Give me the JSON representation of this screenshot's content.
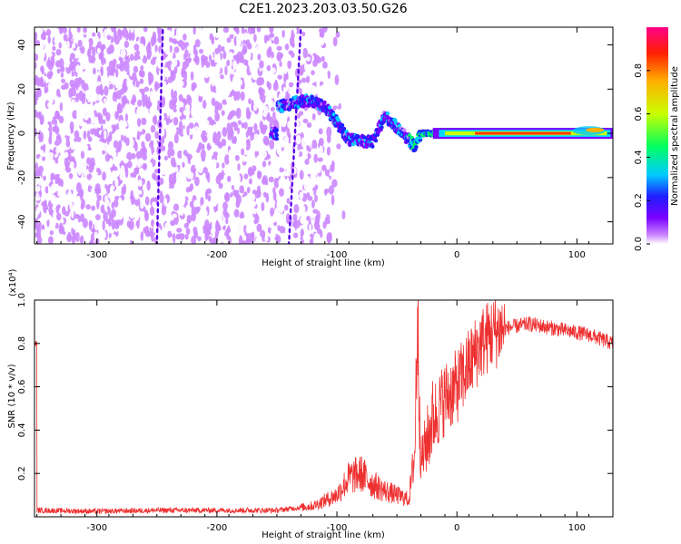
{
  "title": "C2E1.2023.203.03.50.G26",
  "chart_data": [
    {
      "type": "heatmap",
      "xlabel": "Height of straight line (km)",
      "ylabel": "Frequency (Hz)",
      "xlim": [
        -352,
        130
      ],
      "ylim": [
        -50,
        48
      ],
      "xticks": [
        -300,
        -200,
        -100,
        0,
        100
      ],
      "yticks": [
        -40,
        -20,
        0,
        20,
        40
      ],
      "colorbar": {
        "label": "Normalized spectral amplitude",
        "range": [
          0,
          1
        ],
        "ticks": [
          0.0,
          0.2,
          0.4,
          0.6,
          0.8
        ],
        "colormap": [
          "#ffffff",
          "#cc88ff",
          "#7a00ff",
          "#1f1fff",
          "#00ccff",
          "#00ff60",
          "#c8ff00",
          "#ffb000",
          "#ff2000",
          "#ff0088"
        ]
      },
      "features": {
        "noise_region_x": [
          -352,
          -130
        ],
        "scattered_region_x": [
          -130,
          -100
        ],
        "track": [
          {
            "x": -150,
            "y": 12
          },
          {
            "x": -125,
            "y": 15
          },
          {
            "x": -110,
            "y": 12
          },
          {
            "x": -100,
            "y": 5
          },
          {
            "x": -90,
            "y": -3
          },
          {
            "x": -70,
            "y": -4
          },
          {
            "x": -60,
            "y": 8
          },
          {
            "x": -45,
            "y": 0
          },
          {
            "x": -35,
            "y": -6
          },
          {
            "x": -30,
            "y": 0
          },
          {
            "x": 0,
            "y": 0
          },
          {
            "x": 100,
            "y": 0
          },
          {
            "x": 130,
            "y": 2
          }
        ],
        "strong_signal_x": [
          15,
          95
        ]
      }
    },
    {
      "type": "line",
      "xlabel": "Height of straight line (km)",
      "ylabel": "SNR (10 * v/v)",
      "multiplier": "(x10⁴)",
      "xlim": [
        -352,
        130
      ],
      "ylim": [
        0,
        1.0
      ],
      "xticks": [
        -300,
        -200,
        -100,
        0,
        100
      ],
      "yticks": [
        0.2,
        0.4,
        0.6,
        0.8,
        1.0
      ],
      "line_color": "#ee3030",
      "series": [
        {
          "x": [
            -350,
            -300,
            -250,
            -200,
            -150,
            -120,
            -100,
            -90,
            -80,
            -70,
            -60,
            -50,
            -40,
            -35,
            -33,
            -30,
            -25,
            -20,
            -10,
            0,
            10,
            20,
            30,
            40,
            50,
            60,
            70,
            80,
            90,
            100,
            110,
            120,
            130
          ],
          "y": [
            0.03,
            0.025,
            0.03,
            0.03,
            0.03,
            0.05,
            0.1,
            0.18,
            0.2,
            0.15,
            0.12,
            0.1,
            0.08,
            0.3,
            0.98,
            0.25,
            0.35,
            0.45,
            0.55,
            0.6,
            0.7,
            0.8,
            0.85,
            0.87,
            0.88,
            0.89,
            0.88,
            0.87,
            0.86,
            0.85,
            0.84,
            0.82,
            0.8
          ]
        }
      ]
    }
  ]
}
